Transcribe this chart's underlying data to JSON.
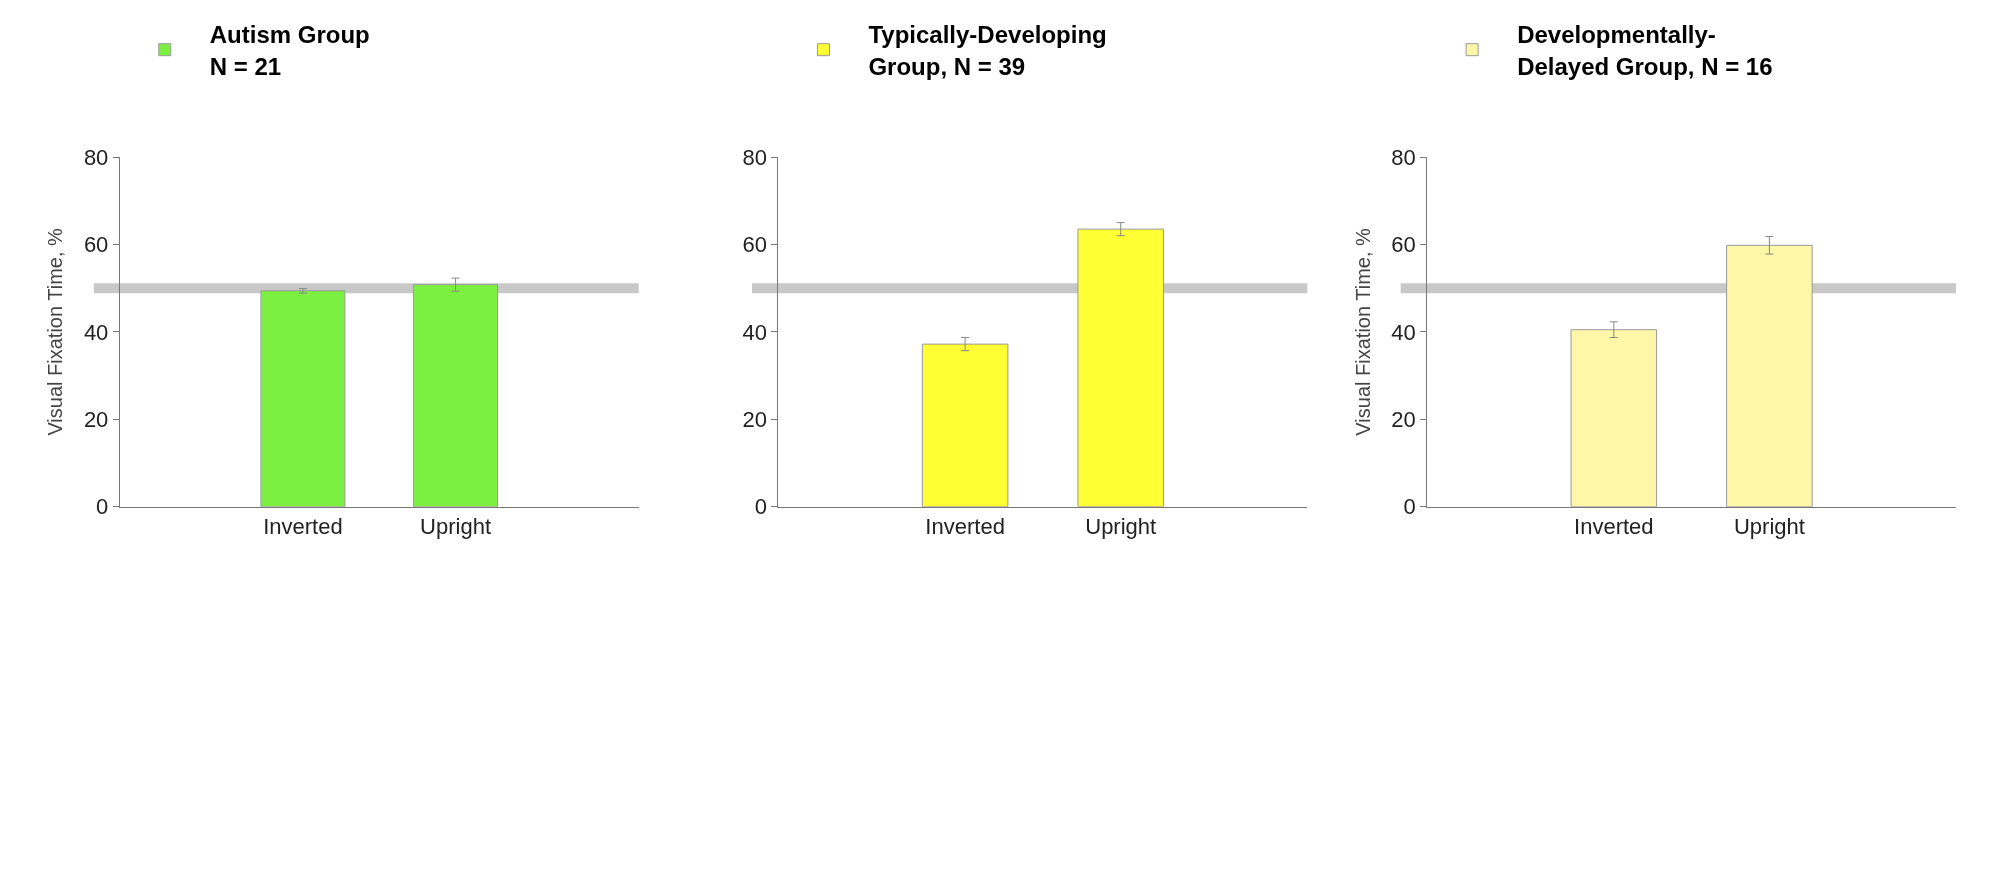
{
  "chart_data": [
    {
      "type": "bar",
      "categories": [
        "Inverted",
        "Upright"
      ],
      "ylabel": "Visual Fixation Time, %",
      "ylim": [
        0,
        80
      ],
      "yticks": [
        0,
        20,
        40,
        60,
        80
      ],
      "legend": "top",
      "series": [
        {
          "name": "Autism Group\nN = 21",
          "color": "#7cf040",
          "values": [
            49.4,
            50.8
          ],
          "errors": [
            0.5,
            1.5
          ]
        }
      ],
      "ref_lines": [
        {
          "axis": "y",
          "value": 50,
          "color": "#c8c8c8"
        }
      ]
    },
    {
      "type": "bar",
      "categories": [
        "Inverted",
        "Upright"
      ],
      "ylim": [
        0,
        80
      ],
      "yticks": [
        0,
        20,
        40,
        60,
        80
      ],
      "legend": "top",
      "series": [
        {
          "name": "Typically-Developing\nGroup, N = 39",
          "color": "#ffff33",
          "values": [
            37.2,
            63.5
          ],
          "errors": [
            1.5,
            1.5
          ]
        }
      ],
      "ref_lines": [
        {
          "axis": "y",
          "value": 50,
          "color": "#c8c8c8"
        }
      ]
    },
    {
      "type": "bar",
      "categories": [
        "Inverted",
        "Upright"
      ],
      "ylabel": "Visual Fixation Time, %",
      "ylim": [
        0,
        80
      ],
      "yticks": [
        0,
        20,
        40,
        60,
        80
      ],
      "legend": "top",
      "series": [
        {
          "name": "Developmentally-\nDelayed Group, N = 16",
          "color": "#fff7a8",
          "values": [
            40.5,
            59.8
          ],
          "errors": [
            1.8,
            2
          ]
        }
      ],
      "ref_lines": [
        {
          "axis": "y",
          "value": 50,
          "color": "#c8c8c8"
        }
      ]
    }
  ]
}
